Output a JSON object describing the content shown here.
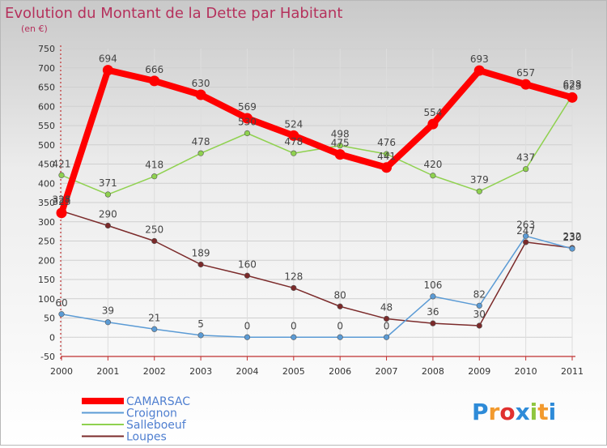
{
  "chart_data": {
    "type": "line",
    "title": "Evolution du Montant de la Dette par Habitant",
    "subtitle": "(en €)",
    "x": [
      "2000",
      "2001",
      "2002",
      "2003",
      "2004",
      "2005",
      "2006",
      "2007",
      "2008",
      "2009",
      "2010",
      "2011"
    ],
    "ylim": [
      -50,
      750
    ],
    "yticks": [
      -50,
      0,
      50,
      100,
      150,
      200,
      250,
      300,
      350,
      400,
      450,
      500,
      550,
      600,
      650,
      700,
      750
    ],
    "grid": true,
    "legend_position": "bottom-left",
    "series": [
      {
        "name": "CAMARSAC",
        "color": "#ff0000",
        "values": [
          323,
          694,
          666,
          630,
          569,
          524,
          475,
          441,
          554,
          693,
          657,
          623
        ]
      },
      {
        "name": "Croignon",
        "color": "#5b9bd5",
        "values": [
          60,
          39,
          21,
          5,
          0,
          0,
          0,
          0,
          106,
          82,
          263,
          230
        ]
      },
      {
        "name": "Salleboeuf",
        "color": "#8fd14f",
        "values": [
          421,
          371,
          418,
          478,
          530,
          478,
          498,
          476,
          420,
          379,
          437,
          628
        ]
      },
      {
        "name": "Loupes",
        "color": "#7b2a2a",
        "values": [
          328,
          290,
          250,
          189,
          160,
          128,
          80,
          48,
          36,
          30,
          247,
          232
        ]
      }
    ]
  },
  "logo": {
    "text": "Proxiti",
    "letters": [
      "P",
      "r",
      "o",
      "x",
      "i",
      "t",
      "i"
    ],
    "colors": [
      "#2e8bd8",
      "#f29a2e",
      "#e0302f",
      "#2e8bd8",
      "#8fc63f",
      "#f29a2e",
      "#2e8bd8"
    ]
  }
}
